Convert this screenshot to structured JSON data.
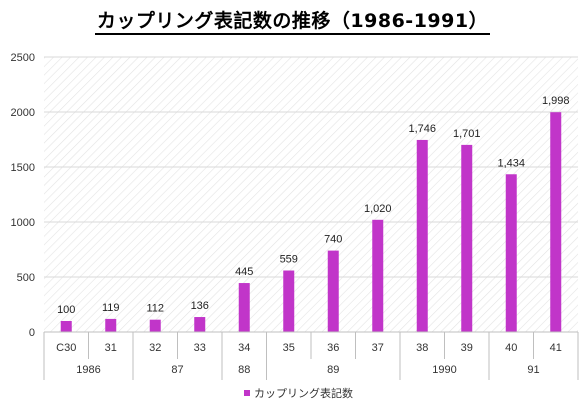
{
  "chart_data": {
    "type": "bar",
    "title": "カップリング表記数の推移（1986-1991）",
    "categories": [
      "C30",
      "31",
      "32",
      "33",
      "34",
      "35",
      "36",
      "37",
      "38",
      "39",
      "40",
      "41"
    ],
    "year_groups": [
      {
        "label": "1986",
        "count": 2
      },
      {
        "label": "87",
        "count": 2
      },
      {
        "label": "88",
        "count": 1
      },
      {
        "label": "89",
        "count": 3
      },
      {
        "label": "1990",
        "count": 2
      },
      {
        "label": "91",
        "count": 2
      }
    ],
    "series": [
      {
        "name": "カップリング表記数",
        "values": [
          100,
          119,
          112,
          136,
          445,
          559,
          740,
          1020,
          1746,
          1701,
          1434,
          1998
        ],
        "data_labels": [
          "100",
          "119",
          "112",
          "136",
          "445",
          "559",
          "740",
          "1,020",
          "1,746",
          "1,701",
          "1,434",
          "1,998"
        ]
      }
    ],
    "yticks": [
      "0",
      "500",
      "1000",
      "1500",
      "2000",
      "2500"
    ],
    "ylim": [
      0,
      2500
    ],
    "grid": true,
    "legend_position": "bottom",
    "colors": {
      "bar": "#C135C9",
      "grid": "#D9D9D9",
      "hatch": "#E3E3E3",
      "axis": "#BFBFBF"
    }
  }
}
